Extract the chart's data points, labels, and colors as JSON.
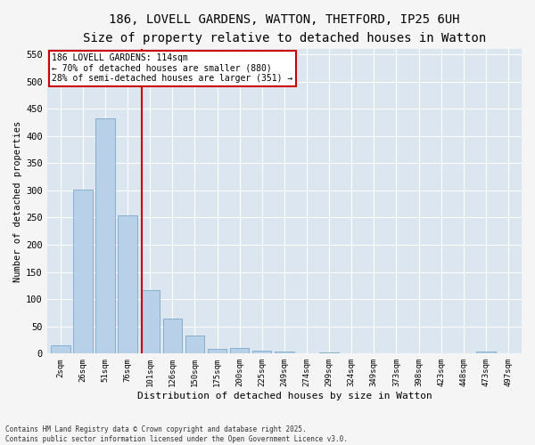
{
  "title1": "186, LOVELL GARDENS, WATTON, THETFORD, IP25 6UH",
  "title2": "Size of property relative to detached houses in Watton",
  "xlabel": "Distribution of detached houses by size in Watton",
  "ylabel": "Number of detached properties",
  "categories": [
    "2sqm",
    "26sqm",
    "51sqm",
    "76sqm",
    "101sqm",
    "126sqm",
    "150sqm",
    "175sqm",
    "200sqm",
    "225sqm",
    "249sqm",
    "274sqm",
    "299sqm",
    "324sqm",
    "349sqm",
    "373sqm",
    "398sqm",
    "423sqm",
    "448sqm",
    "473sqm",
    "497sqm"
  ],
  "values": [
    15,
    302,
    432,
    254,
    117,
    65,
    33,
    9,
    11,
    5,
    3,
    0,
    2,
    0,
    0,
    0,
    0,
    0,
    0,
    4,
    0
  ],
  "bar_color": "#b8d0e8",
  "bar_edge_color": "#6a9fc0",
  "vline_color": "#cc0000",
  "annotation_text": "186 LOVELL GARDENS: 114sqm\n← 70% of detached houses are smaller (880)\n28% of semi-detached houses are larger (351) →",
  "annotation_box_color": "#cc0000",
  "ylim": [
    0,
    560
  ],
  "yticks": [
    0,
    50,
    100,
    150,
    200,
    250,
    300,
    350,
    400,
    450,
    500,
    550
  ],
  "bg_color": "#dce6f0",
  "fig_bg_color": "#f5f5f5",
  "footer": "Contains HM Land Registry data © Crown copyright and database right 2025.\nContains public sector information licensed under the Open Government Licence v3.0.",
  "title_fontsize": 10,
  "subtitle_fontsize": 9,
  "bar_width": 0.85,
  "vline_x_index": 3.63
}
